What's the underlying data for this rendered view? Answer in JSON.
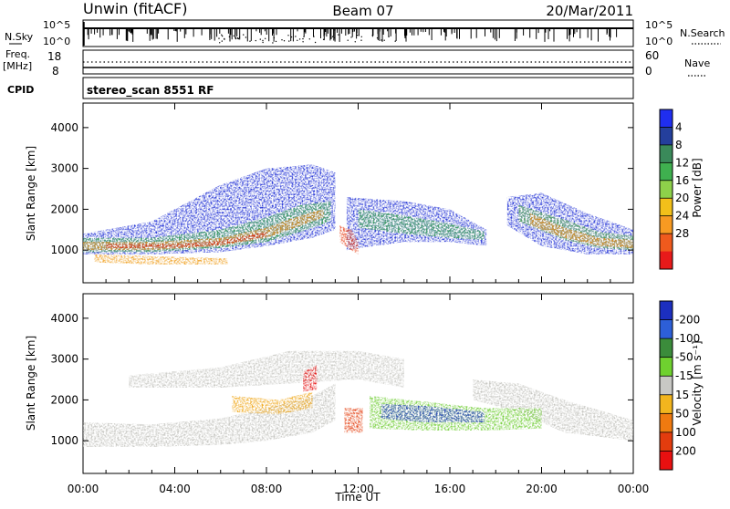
{
  "header": {
    "station": "Unwin (fitACF)",
    "beam": "Beam 07",
    "date": "20/Mar/2011"
  },
  "noise_panel": {
    "left_label": "N.Sky",
    "left_ticks": [
      "10^5",
      "10^0"
    ],
    "right_label": "N.Search",
    "right_ticks": [
      "10^5",
      "10^0"
    ]
  },
  "freq_panel": {
    "left_label_1": "Freq.",
    "left_label_2": "[MHz]",
    "left_ticks": [
      "18",
      "8"
    ],
    "right_label": "Nave",
    "right_ticks": [
      "60",
      "0"
    ]
  },
  "cpid_panel": {
    "label": "CPID",
    "mode": "stereo_scan 8551 RF"
  },
  "chart_data": [
    {
      "type": "heatmap",
      "panel": "power",
      "ylabel": "Slant Range [km]",
      "yticks": [
        1000,
        2000,
        3000,
        4000
      ],
      "ylim": [
        200,
        4600
      ],
      "xlim": [
        0,
        24
      ],
      "xticks": [
        0,
        4,
        8,
        12,
        16,
        20,
        24
      ],
      "colorbar_label": "Power [dB]",
      "colorbar_ticks": [
        "4",
        "8",
        "12",
        "16",
        "20",
        "24",
        "28"
      ],
      "colorbar_colors": [
        "#1f2ef0",
        "#243f9c",
        "#3a8a5a",
        "#3fb04f",
        "#8ed14a",
        "#f2c01a",
        "#f79a22",
        "#ef5a1d",
        "#e81a1a"
      ],
      "features": [
        {
          "name": "main band",
          "x": [
            0,
            3,
            6,
            8,
            9.5,
            10.2,
            10.8
          ],
          "y": [
            1100,
            1150,
            1250,
            1450,
            1750,
            2000,
            2100
          ]
        },
        {
          "name": "arc 12h",
          "x": [
            10.5,
            11.5,
            12.0
          ],
          "y": [
            1900,
            1700,
            1200
          ]
        },
        {
          "name": "band 12-18h",
          "x": [
            12,
            14,
            16,
            17.5
          ],
          "y": [
            1900,
            1700,
            1500,
            1350
          ]
        },
        {
          "name": "band 19-24h",
          "x": [
            19,
            21,
            22.5,
            24
          ],
          "y": [
            2000,
            1500,
            1250,
            1150
          ]
        }
      ]
    },
    {
      "type": "heatmap",
      "panel": "velocity",
      "ylabel": "Slant Range [km]",
      "xlabel": "Time UT",
      "yticks": [
        1000,
        2000,
        3000,
        4000
      ],
      "ylim": [
        200,
        4600
      ],
      "xlim": [
        0,
        24
      ],
      "xticks": [
        0,
        4,
        8,
        12,
        16,
        20,
        24
      ],
      "xtick_labels": [
        "00:00",
        "04:00",
        "08:00",
        "12:00",
        "16:00",
        "20:00",
        "00:00"
      ],
      "colorbar_label": "Velocity [m s⁻¹]",
      "colorbar_ticks": [
        "200",
        "100",
        "50",
        "15",
        "-15",
        "-50",
        "-100",
        "-200"
      ],
      "colorbar_colors": [
        "#1c2fbf",
        "#2d5fd8",
        "#3b8c3b",
        "#6fd12f",
        "#c8c8c4",
        "#f2b51e",
        "#f07a10",
        "#e33c0e",
        "#e81010"
      ],
      "features": [
        {
          "name": "grey band",
          "x": [
            0,
            4,
            8,
            10
          ],
          "y": [
            1100,
            1150,
            1350,
            1600
          ]
        },
        {
          "name": "red patch",
          "x": [
            9.6,
            10.2
          ],
          "y": [
            2300,
            2600
          ]
        },
        {
          "name": "blue band",
          "x": [
            13,
            15,
            17.5
          ],
          "y": [
            1700,
            1600,
            1500
          ]
        },
        {
          "name": "grey band late",
          "x": [
            18.5,
            22,
            24
          ],
          "y": [
            2100,
            1400,
            1150
          ]
        }
      ]
    }
  ]
}
